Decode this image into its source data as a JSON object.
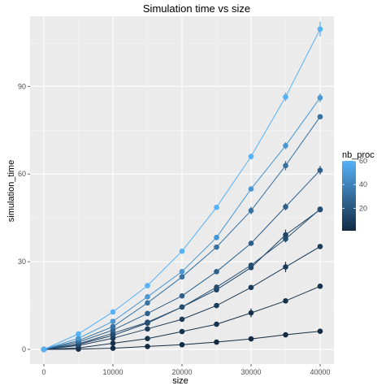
{
  "chart_data": {
    "type": "line",
    "title": "Simulation time vs size",
    "xlabel": "size",
    "ylabel": "simulation_time",
    "xlim": [
      -2000,
      42000
    ],
    "ylim": [
      -5,
      114
    ],
    "x_ticks": [
      0,
      10000,
      20000,
      30000,
      40000
    ],
    "y_ticks": [
      0,
      30,
      60,
      90
    ],
    "x_tick_labels": [
      "0",
      "10000",
      "20000",
      "30000",
      "40000"
    ],
    "y_tick_labels": [
      "0",
      "30",
      "60",
      "90"
    ],
    "grid": true,
    "legend": {
      "title": "nb_proc",
      "position": "right",
      "type": "colorbar",
      "range": [
        1,
        60
      ],
      "ticks": [
        20,
        40,
        60
      ],
      "tick_labels": [
        "20",
        "40",
        "60"
      ],
      "color_low": "#132b43",
      "color_high": "#56b1f7"
    },
    "x": [
      0,
      5000,
      10000,
      15000,
      20000,
      25000,
      30000,
      35000,
      40000
    ],
    "series": [
      {
        "nb_proc": 1,
        "values": [
          0,
          0.1,
          0.4,
          1.0,
          1.6,
          2.5,
          3.6,
          5.0,
          6.2
        ],
        "errors": [
          0,
          0,
          0,
          0,
          0,
          0,
          0,
          0.3,
          0.3
        ]
      },
      {
        "nb_proc": 4,
        "values": [
          0,
          0.5,
          2.1,
          3.7,
          6.1,
          8.6,
          12.5,
          16.6,
          21.6
        ],
        "errors": [
          0,
          0,
          0,
          0,
          0,
          0,
          1.5,
          0,
          0
        ]
      },
      {
        "nb_proc": 8,
        "values": [
          0,
          1.3,
          3.8,
          7.0,
          10.3,
          15.0,
          21.2,
          28.2,
          35.2
        ],
        "errors": [
          0,
          0,
          0,
          0,
          0,
          0,
          0,
          1.8,
          0
        ]
      },
      {
        "nb_proc": 12,
        "values": [
          0,
          1.7,
          4.8,
          9.0,
          14.5,
          20.4,
          28.0,
          39.2,
          47.8
        ],
        "errors": [
          0,
          0,
          0,
          0,
          0,
          0,
          0,
          1.8,
          0
        ]
      },
      {
        "nb_proc": 16,
        "values": [
          0,
          1.9,
          5.5,
          9.3,
          14.5,
          21.3,
          28.8,
          37.8,
          48.0
        ],
        "errors": [
          0,
          0,
          0,
          0,
          0,
          0,
          0,
          1.2,
          0
        ]
      },
      {
        "nb_proc": 24,
        "values": [
          0,
          2.5,
          6.6,
          12.3,
          18.3,
          26.6,
          36.3,
          48.8,
          61.3
        ],
        "errors": [
          0,
          0,
          0,
          0,
          0,
          0,
          0,
          1.2,
          1.5
        ]
      },
      {
        "nb_proc": 32,
        "values": [
          0,
          3.0,
          7.8,
          15.9,
          24.8,
          35.0,
          47.5,
          62.9,
          79.6
        ],
        "errors": [
          0,
          0,
          0,
          0,
          0,
          0,
          1.3,
          1.6,
          0
        ]
      },
      {
        "nb_proc": 48,
        "values": [
          0,
          3.8,
          9.6,
          18.0,
          26.6,
          38.3,
          54.9,
          69.7,
          86.1
        ],
        "errors": [
          0,
          0,
          0,
          0,
          0,
          0,
          0,
          1.2,
          1.5
        ]
      },
      {
        "nb_proc": 60,
        "values": [
          0,
          5.3,
          12.8,
          21.8,
          33.6,
          48.6,
          66.0,
          86.4,
          109.6
        ],
        "errors": [
          0,
          0,
          0,
          0,
          0,
          0,
          1.0,
          1.5,
          2.5
        ]
      }
    ]
  }
}
